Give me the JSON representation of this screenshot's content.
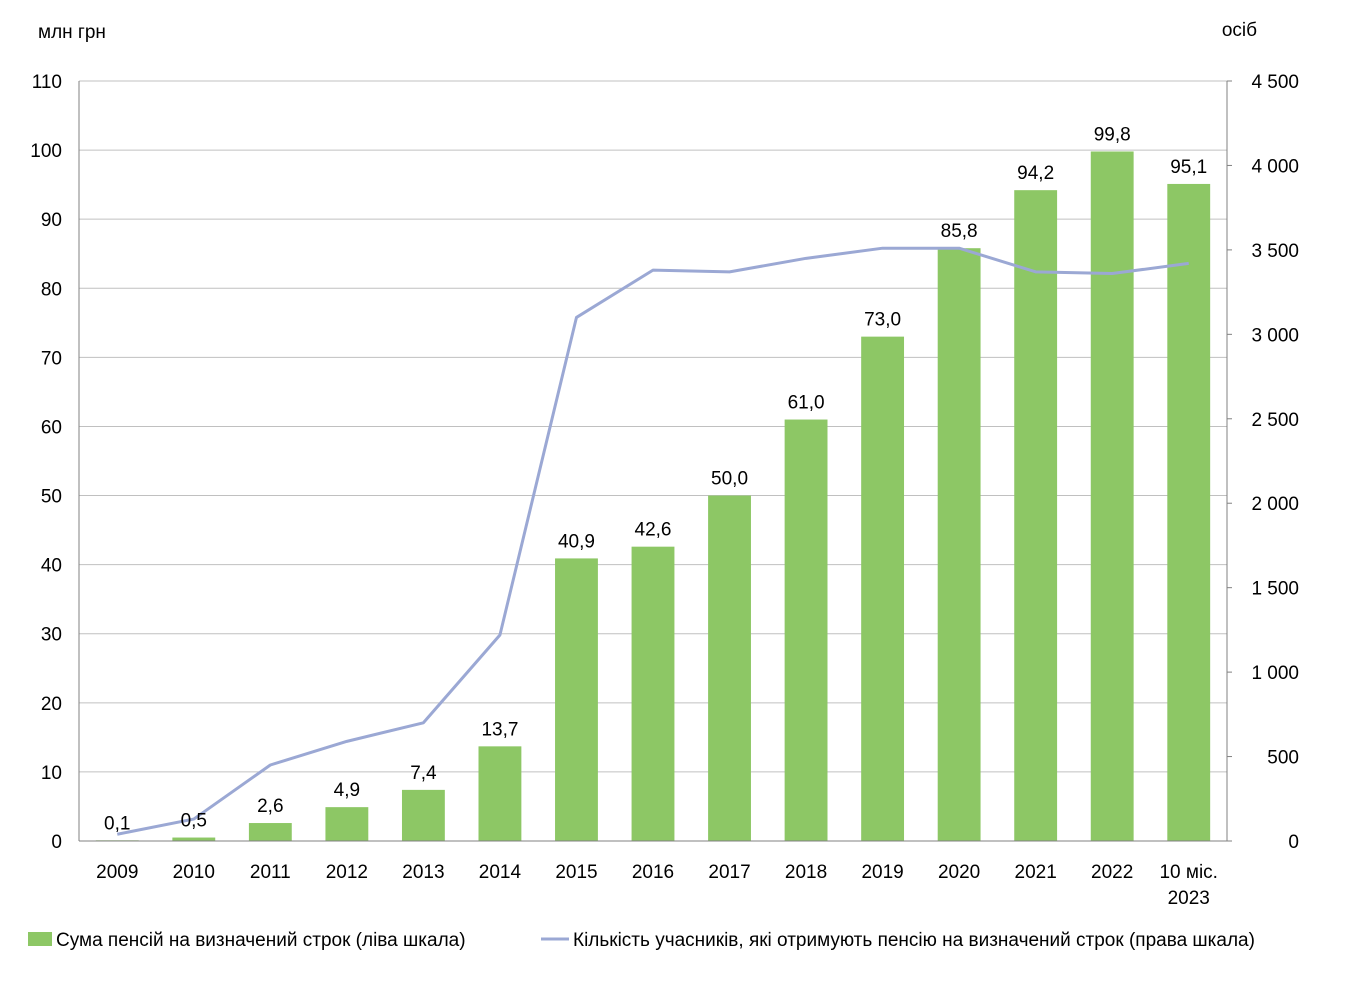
{
  "chart_data": {
    "type": "bar",
    "title": "",
    "left_axis_unit": "млн грн",
    "right_axis_unit": "осіб",
    "categories": [
      [
        "2009"
      ],
      [
        "2010"
      ],
      [
        "2011"
      ],
      [
        "2012"
      ],
      [
        "2013"
      ],
      [
        "2014"
      ],
      [
        "2015"
      ],
      [
        "2016"
      ],
      [
        "2017"
      ],
      [
        "2018"
      ],
      [
        "2019"
      ],
      [
        "2020"
      ],
      [
        "2021"
      ],
      [
        "2022"
      ],
      [
        "10 міс.",
        "2023"
      ]
    ],
    "y_left": {
      "min": 0,
      "max": 110,
      "step": 10,
      "ticks": [
        "0",
        "10",
        "20",
        "30",
        "40",
        "50",
        "60",
        "70",
        "80",
        "90",
        "100",
        "110"
      ]
    },
    "y_right": {
      "min": 0,
      "max": 4500,
      "step": 500,
      "ticks": [
        "0",
        "500",
        "1 000",
        "1 500",
        "2 000",
        "2 500",
        "3 000",
        "3 500",
        "4 000",
        "4 500"
      ]
    },
    "grid": true,
    "legend_position": "bottom",
    "series": [
      {
        "name": "Сума пенсій на визначений строк (ліва шкала)",
        "type": "bar",
        "axis": "left",
        "color": "#8dc765",
        "values": [
          0.1,
          0.5,
          2.6,
          4.9,
          7.4,
          13.7,
          40.9,
          42.6,
          50.0,
          61.0,
          73.0,
          85.8,
          94.2,
          99.8,
          95.1
        ],
        "labels": [
          "0,1",
          "0,5",
          "2,6",
          "4,9",
          "7,4",
          "13,7",
          "40,9",
          "42,6",
          "50,0",
          "61,0",
          "73,0",
          "85,8",
          "94,2",
          "99,8",
          "95,1"
        ]
      },
      {
        "name": "Кількість учасників, які отримують пенсію на визначений строк (права шкала)",
        "type": "line",
        "axis": "right",
        "color": "#9ba8d4",
        "values": [
          40,
          130,
          450,
          590,
          700,
          1220,
          3100,
          3380,
          3370,
          3450,
          3510,
          3510,
          3370,
          3360,
          3420
        ]
      }
    ]
  }
}
